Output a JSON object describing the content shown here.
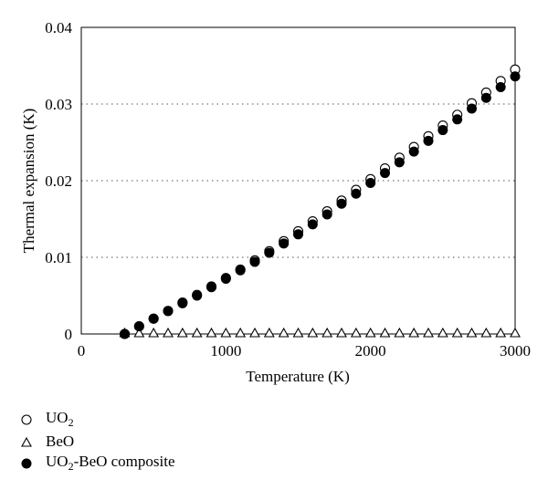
{
  "chart_data": {
    "type": "scatter",
    "title": "",
    "xlabel": "Temperature (K)",
    "ylabel": "Thermal expansion (K)",
    "xlim": [
      0,
      3000
    ],
    "ylim": [
      0,
      0.04
    ],
    "x_ticks": [
      0,
      1000,
      2000,
      3000
    ],
    "y_ticks": [
      0,
      0.01,
      0.02,
      0.03,
      0.04
    ],
    "x_tick_labels": [
      "0",
      "1000",
      "2000",
      "3000"
    ],
    "y_tick_labels": [
      "0",
      "0.01",
      "0.02",
      "0.03",
      "0.04"
    ],
    "grid": "horizontal dotted",
    "legend_position": "bottom-left, below plot",
    "x": [
      300,
      400,
      500,
      600,
      700,
      800,
      900,
      1000,
      1100,
      1200,
      1300,
      1400,
      1500,
      1600,
      1700,
      1800,
      1900,
      2000,
      2100,
      2200,
      2300,
      2400,
      2500,
      2600,
      2700,
      2800,
      2900,
      3000
    ],
    "series": [
      {
        "name_parts": [
          "UO",
          "2",
          ""
        ],
        "marker": "open-circle",
        "values": [
          0.0,
          0.001,
          0.002,
          0.003,
          0.0041,
          0.0051,
          0.0062,
          0.0073,
          0.0084,
          0.0096,
          0.0108,
          0.0121,
          0.0134,
          0.0147,
          0.016,
          0.0174,
          0.0188,
          0.0202,
          0.0216,
          0.023,
          0.0244,
          0.0258,
          0.0272,
          0.0286,
          0.0301,
          0.0315,
          0.033,
          0.0345
        ]
      },
      {
        "name_parts": [
          "BeO",
          "",
          ""
        ],
        "marker": "open-triangle",
        "values": [
          0.0,
          0.0,
          0.0,
          0.0,
          0.0,
          0.0,
          0.0,
          0.0,
          0.0,
          0.0,
          0.0,
          0.0,
          0.0,
          0.0,
          0.0,
          0.0,
          0.0,
          0.0,
          0.0,
          0.0,
          0.0,
          0.0,
          0.0,
          0.0,
          0.0,
          0.0,
          0.0,
          0.0
        ]
      },
      {
        "name_parts": [
          "UO",
          "2",
          "-BeO composite"
        ],
        "marker": "filled-circle",
        "values": [
          0.0,
          0.001,
          0.002,
          0.003,
          0.004,
          0.005,
          0.0061,
          0.0072,
          0.0083,
          0.0094,
          0.0106,
          0.0118,
          0.013,
          0.0143,
          0.0156,
          0.017,
          0.0183,
          0.0197,
          0.021,
          0.0224,
          0.0238,
          0.0252,
          0.0266,
          0.028,
          0.0294,
          0.0308,
          0.0322,
          0.0336
        ]
      }
    ]
  },
  "colors": {
    "marker": "#000000",
    "grid": "#555555",
    "axis": "#000000"
  }
}
